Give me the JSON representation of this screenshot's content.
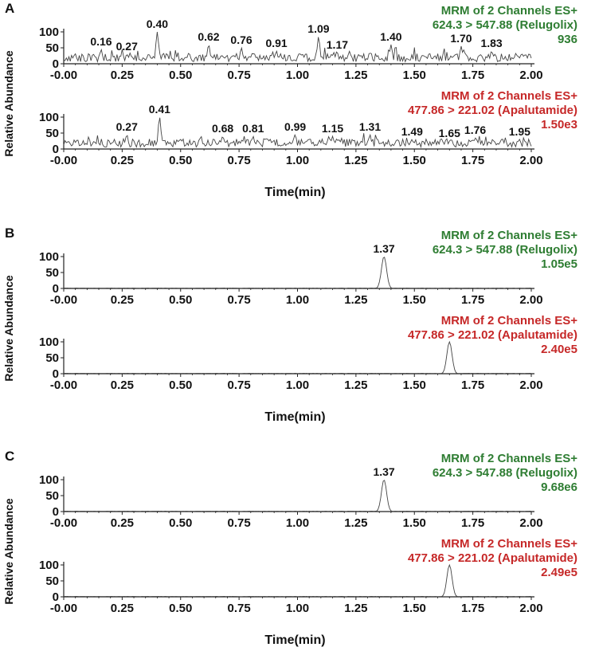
{
  "chart_data": [
    {
      "panel": "A",
      "xlabel": "Time(min)",
      "ylabel": "Relative Abundance",
      "xticks": [
        "-0.00",
        "0.25",
        "0.50",
        "0.75",
        "1.00",
        "1.25",
        "1.50",
        "1.75",
        "2.00"
      ],
      "traces": [
        {
          "type": "line",
          "info": [
            "MRM of 2 Channels ES+",
            "624.3 > 547.88 (Relugolix)",
            "936"
          ],
          "color": "#2e7d32",
          "xlim": [
            0,
            2
          ],
          "ylim": [
            0,
            100
          ],
          "yticks": [
            0,
            50,
            100
          ],
          "noise": true,
          "noise_seed": 11,
          "peaks": [
            {
              "x": 0.16,
              "label": "0.16",
              "y": 45
            },
            {
              "x": 0.27,
              "label": "0.27",
              "y": 30
            },
            {
              "x": 0.4,
              "label": "0.40",
              "y": 100
            },
            {
              "x": 0.62,
              "label": "0.62",
              "y": 60
            },
            {
              "x": 0.76,
              "label": "0.76",
              "y": 50
            },
            {
              "x": 0.91,
              "label": "0.91",
              "y": 40
            },
            {
              "x": 1.09,
              "label": "1.09",
              "y": 85
            },
            {
              "x": 1.17,
              "label": "1.17",
              "y": 35
            },
            {
              "x": 1.4,
              "label": "1.40",
              "y": 60
            },
            {
              "x": 1.7,
              "label": "1.70",
              "y": 55
            },
            {
              "x": 1.83,
              "label": "1.83",
              "y": 40
            }
          ]
        },
        {
          "type": "line",
          "info": [
            "MRM of 2 Channels ES+",
            "477.86 > 221.02 (Apalutamide)",
            "1.50e3"
          ],
          "color": "#c62828",
          "xlim": [
            0,
            2
          ],
          "ylim": [
            0,
            100
          ],
          "yticks": [
            0,
            50,
            100
          ],
          "noise": true,
          "noise_seed": 29,
          "peaks": [
            {
              "x": 0.27,
              "label": "0.27",
              "y": 45
            },
            {
              "x": 0.41,
              "label": "0.41",
              "y": 100
            },
            {
              "x": 0.68,
              "label": "0.68",
              "y": 40
            },
            {
              "x": 0.81,
              "label": "0.81",
              "y": 40
            },
            {
              "x": 0.99,
              "label": "0.99",
              "y": 45
            },
            {
              "x": 1.15,
              "label": "1.15",
              "y": 40
            },
            {
              "x": 1.31,
              "label": "1.31",
              "y": 45
            },
            {
              "x": 1.49,
              "label": "1.49",
              "y": 30
            },
            {
              "x": 1.65,
              "label": "1.65",
              "y": 25
            },
            {
              "x": 1.76,
              "label": "1.76",
              "y": 35
            },
            {
              "x": 1.95,
              "label": "1.95",
              "y": 30
            }
          ]
        }
      ]
    },
    {
      "panel": "B",
      "xlabel": "Time(min)",
      "ylabel": "Relative Abundance",
      "xticks": [
        "-0.00",
        "0.25",
        "0.50",
        "0.75",
        "1.00",
        "1.25",
        "1.50",
        "1.75",
        "2.00"
      ],
      "traces": [
        {
          "type": "line",
          "info": [
            "MRM of 2 Channels ES+",
            "624.3 > 547.88 (Relugolix)",
            "1.05e5"
          ],
          "color": "#2e7d32",
          "xlim": [
            0,
            2
          ],
          "ylim": [
            0,
            100
          ],
          "yticks": [
            0,
            50,
            100
          ],
          "noise": false,
          "noise_seed": 0,
          "peaks": [
            {
              "x": 1.37,
              "label": "1.37",
              "y": 100
            }
          ]
        },
        {
          "type": "line",
          "info": [
            "MRM of 2 Channels ES+",
            "477.86 > 221.02 (Apalutamide)",
            "2.40e5"
          ],
          "color": "#c62828",
          "xlim": [
            0,
            2
          ],
          "ylim": [
            0,
            100
          ],
          "yticks": [
            0,
            50,
            100
          ],
          "noise": false,
          "noise_seed": 0,
          "peaks": [
            {
              "x": 1.65,
              "label": "",
              "y": 100
            }
          ]
        }
      ]
    },
    {
      "panel": "C",
      "xlabel": "Time(min)",
      "ylabel": "Relative Abundance",
      "xticks": [
        "-0.00",
        "0.25",
        "0.50",
        "0.75",
        "1.00",
        "1.25",
        "1.50",
        "1.75",
        "2.00"
      ],
      "traces": [
        {
          "type": "line",
          "info": [
            "MRM of 2 Channels ES+",
            "624.3 > 547.88 (Relugolix)",
            "9.68e6"
          ],
          "color": "#2e7d32",
          "xlim": [
            0,
            2
          ],
          "ylim": [
            0,
            100
          ],
          "yticks": [
            0,
            50,
            100
          ],
          "noise": false,
          "noise_seed": 0,
          "peaks": [
            {
              "x": 1.37,
              "label": "1.37",
              "y": 100
            }
          ]
        },
        {
          "type": "line",
          "info": [
            "MRM of 2 Channels ES+",
            "477.86 > 221.02 (Apalutamide)",
            "2.49e5"
          ],
          "color": "#c62828",
          "xlim": [
            0,
            2
          ],
          "ylim": [
            0,
            100
          ],
          "yticks": [
            0,
            50,
            100
          ],
          "noise": false,
          "noise_seed": 0,
          "peaks": [
            {
              "x": 1.65,
              "label": "",
              "y": 100
            }
          ]
        }
      ]
    }
  ]
}
